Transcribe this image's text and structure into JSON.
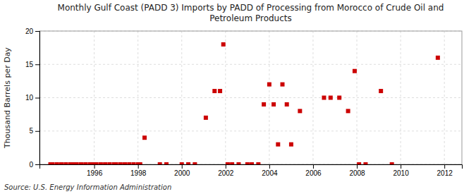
{
  "chart_data": {
    "type": "scatter",
    "title": "Monthly Gulf Coast (PADD 3) Imports by PADD of Processing from Morocco of Crude Oil and\nPetroleum Products",
    "y_label": "Thousand Barrels per Day",
    "annotations": [
      "Source: U.S. Energy Information Administration"
    ],
    "color": "#cc0000",
    "marker": "square",
    "grid": true,
    "xlim": [
      1993.5,
      2012.8
    ],
    "ylim": [
      0,
      20
    ],
    "xticks": [
      1996,
      1998,
      2000,
      2002,
      2004,
      2006,
      2008,
      2010,
      2012
    ],
    "yticks": [
      0,
      5,
      10,
      15,
      20
    ],
    "x": [
      1994.0,
      1994.1,
      1994.3,
      1994.5,
      1994.7,
      1994.9,
      1995.0,
      1995.1,
      1995.2,
      1995.4,
      1995.6,
      1995.8,
      1995.9,
      1996.0,
      1996.1,
      1996.3,
      1996.5,
      1996.7,
      1996.9,
      1997.0,
      1997.2,
      1997.4,
      1997.6,
      1997.8,
      1998.0,
      1998.1,
      1998.3,
      1999.0,
      1999.3,
      2000.0,
      2000.3,
      2000.6,
      2001.1,
      2001.5,
      2001.75,
      2001.9,
      2002.1,
      2002.3,
      2002.6,
      2003.0,
      2003.2,
      2003.5,
      2003.75,
      2004.0,
      2004.2,
      2004.4,
      2004.6,
      2004.8,
      2005.0,
      2005.4,
      2006.5,
      2006.8,
      2007.2,
      2007.6,
      2007.9,
      2008.1,
      2008.4,
      2009.1,
      2009.6,
      2011.7
    ],
    "values": [
      0,
      0,
      0,
      0,
      0,
      0,
      0,
      0,
      0,
      0,
      0,
      0,
      0,
      0,
      0,
      0,
      0,
      0,
      0,
      0,
      0,
      0,
      0,
      0,
      0,
      0,
      4,
      0,
      0,
      0,
      0,
      0,
      7,
      11,
      11,
      18,
      0,
      0,
      0,
      0,
      0,
      0,
      9,
      12,
      9,
      3,
      12,
      9,
      3,
      8,
      10,
      10,
      10,
      8,
      14,
      0,
      0,
      11,
      0,
      16
    ]
  }
}
